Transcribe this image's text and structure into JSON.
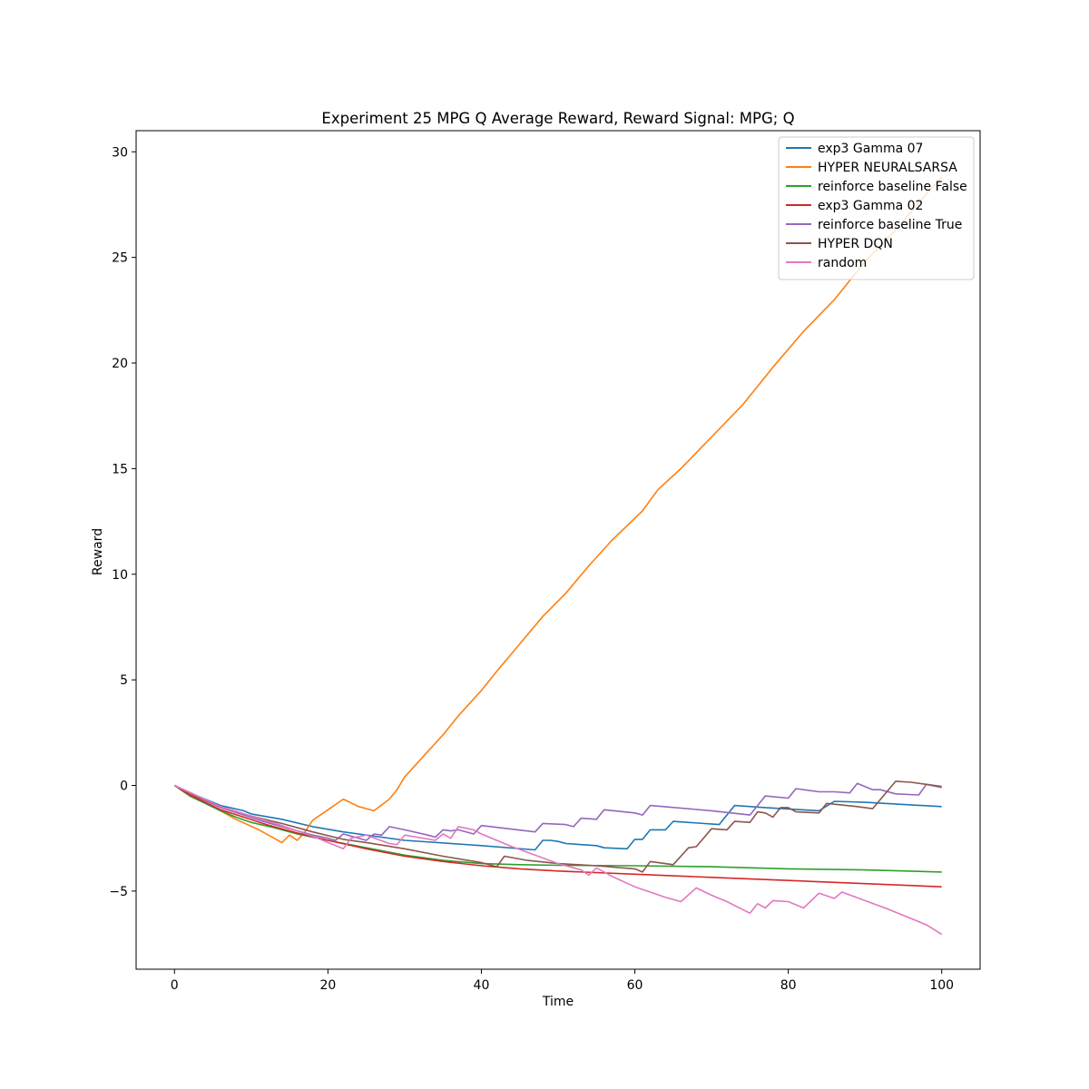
{
  "chart_data": {
    "type": "line",
    "title": "Experiment 25 MPG Q Average Reward,  Reward Signal: MPG; Q",
    "xlabel": "Time",
    "ylabel": "Reward",
    "xlim": [
      -5,
      105
    ],
    "ylim": [
      -8.7,
      31
    ],
    "xticks": [
      0,
      20,
      40,
      60,
      80,
      100
    ],
    "yticks": [
      -5,
      0,
      5,
      10,
      15,
      20,
      25,
      30
    ],
    "grid": false,
    "legend_position": "top-right",
    "series": [
      {
        "name": "exp3 Gamma 07",
        "color": "#1f77b4",
        "points": [
          [
            0,
            0
          ],
          [
            3,
            -0.5
          ],
          [
            6,
            -0.95
          ],
          [
            9,
            -1.2
          ],
          [
            10,
            -1.35
          ],
          [
            14,
            -1.6
          ],
          [
            18,
            -1.95
          ],
          [
            22,
            -2.2
          ],
          [
            30,
            -2.6
          ],
          [
            40,
            -2.85
          ],
          [
            47,
            -3.05
          ],
          [
            48,
            -2.6
          ],
          [
            49,
            -2.6
          ],
          [
            50,
            -2.65
          ],
          [
            51,
            -2.75
          ],
          [
            55,
            -2.85
          ],
          [
            56,
            -2.95
          ],
          [
            59,
            -3.0
          ],
          [
            60,
            -2.55
          ],
          [
            61,
            -2.55
          ],
          [
            62,
            -2.1
          ],
          [
            64,
            -2.1
          ],
          [
            65,
            -1.7
          ],
          [
            71,
            -1.85
          ],
          [
            73,
            -0.95
          ],
          [
            77,
            -1.05
          ],
          [
            84,
            -1.2
          ],
          [
            86,
            -0.75
          ],
          [
            90,
            -0.8
          ],
          [
            100,
            -1.0
          ]
        ]
      },
      {
        "name": "HYPER NEURALSARSA",
        "color": "#ff7f0e",
        "points": [
          [
            0,
            0
          ],
          [
            2,
            -0.5
          ],
          [
            5,
            -1.0
          ],
          [
            8,
            -1.6
          ],
          [
            11,
            -2.1
          ],
          [
            14,
            -2.7
          ],
          [
            15,
            -2.35
          ],
          [
            16,
            -2.6
          ],
          [
            17,
            -2.2
          ],
          [
            18,
            -1.65
          ],
          [
            20,
            -1.15
          ],
          [
            22,
            -0.65
          ],
          [
            24,
            -1.0
          ],
          [
            26,
            -1.2
          ],
          [
            28,
            -0.65
          ],
          [
            29,
            -0.2
          ],
          [
            30,
            0.4
          ],
          [
            32,
            1.2
          ],
          [
            34,
            2.0
          ],
          [
            35,
            2.4
          ],
          [
            37,
            3.3
          ],
          [
            40,
            4.5
          ],
          [
            42,
            5.4
          ],
          [
            45,
            6.7
          ],
          [
            48,
            8.0
          ],
          [
            51,
            9.1
          ],
          [
            54,
            10.4
          ],
          [
            57,
            11.6
          ],
          [
            61,
            13.0
          ],
          [
            63,
            14.0
          ],
          [
            66,
            15.0
          ],
          [
            70,
            16.5
          ],
          [
            74,
            18.0
          ],
          [
            78,
            19.8
          ],
          [
            82,
            21.5
          ],
          [
            86,
            23.0
          ],
          [
            90,
            24.8
          ],
          [
            94,
            26.3
          ],
          [
            97,
            27.6
          ],
          [
            100,
            28.8
          ]
        ]
      },
      {
        "name": "reinforce baseline False",
        "color": "#2ca02c",
        "points": [
          [
            0,
            0
          ],
          [
            2,
            -0.5
          ],
          [
            4,
            -0.85
          ],
          [
            6,
            -1.2
          ],
          [
            8,
            -1.5
          ],
          [
            10,
            -1.75
          ],
          [
            13,
            -2.0
          ],
          [
            16,
            -2.3
          ],
          [
            20,
            -2.6
          ],
          [
            25,
            -2.95
          ],
          [
            30,
            -3.3
          ],
          [
            35,
            -3.55
          ],
          [
            40,
            -3.7
          ],
          [
            45,
            -3.75
          ],
          [
            50,
            -3.78
          ],
          [
            60,
            -3.8
          ],
          [
            70,
            -3.85
          ],
          [
            80,
            -3.95
          ],
          [
            90,
            -4.0
          ],
          [
            100,
            -4.1
          ]
        ]
      },
      {
        "name": "exp3 Gamma 02",
        "color": "#d62728",
        "points": [
          [
            0,
            0
          ],
          [
            2,
            -0.45
          ],
          [
            4,
            -0.8
          ],
          [
            6,
            -1.15
          ],
          [
            9,
            -1.5
          ],
          [
            12,
            -1.85
          ],
          [
            16,
            -2.25
          ],
          [
            20,
            -2.6
          ],
          [
            25,
            -3.0
          ],
          [
            30,
            -3.35
          ],
          [
            35,
            -3.6
          ],
          [
            40,
            -3.8
          ],
          [
            45,
            -3.95
          ],
          [
            50,
            -4.05
          ],
          [
            60,
            -4.2
          ],
          [
            70,
            -4.35
          ],
          [
            80,
            -4.5
          ],
          [
            90,
            -4.65
          ],
          [
            100,
            -4.8
          ]
        ]
      },
      {
        "name": "reinforce baseline True",
        "color": "#9467bd",
        "points": [
          [
            0,
            0
          ],
          [
            3,
            -0.55
          ],
          [
            6,
            -1.05
          ],
          [
            9,
            -1.4
          ],
          [
            12,
            -1.75
          ],
          [
            15,
            -2.05
          ],
          [
            18,
            -2.35
          ],
          [
            20,
            -2.5
          ],
          [
            21,
            -2.6
          ],
          [
            22,
            -2.3
          ],
          [
            25,
            -2.6
          ],
          [
            26,
            -2.3
          ],
          [
            27,
            -2.35
          ],
          [
            28,
            -1.95
          ],
          [
            30,
            -2.1
          ],
          [
            33,
            -2.35
          ],
          [
            34,
            -2.45
          ],
          [
            35,
            -2.1
          ],
          [
            36,
            -2.15
          ],
          [
            37,
            -2.1
          ],
          [
            39,
            -2.3
          ],
          [
            40,
            -1.9
          ],
          [
            47,
            -2.2
          ],
          [
            48,
            -1.8
          ],
          [
            51,
            -1.85
          ],
          [
            52,
            -1.95
          ],
          [
            53,
            -1.55
          ],
          [
            55,
            -1.6
          ],
          [
            56,
            -1.15
          ],
          [
            60,
            -1.3
          ],
          [
            61,
            -1.4
          ],
          [
            62,
            -0.95
          ],
          [
            70,
            -1.2
          ],
          [
            75,
            -1.4
          ],
          [
            77,
            -0.5
          ],
          [
            80,
            -0.6
          ],
          [
            81,
            -0.15
          ],
          [
            84,
            -0.3
          ],
          [
            86,
            -0.3
          ],
          [
            88,
            -0.35
          ],
          [
            89,
            0.1
          ],
          [
            91,
            -0.2
          ],
          [
            92,
            -0.2
          ],
          [
            94,
            -0.4
          ],
          [
            97,
            -0.45
          ],
          [
            98,
            0.05
          ],
          [
            100,
            -0.1
          ]
        ]
      },
      {
        "name": "HYPER DQN",
        "color": "#8c564b",
        "points": [
          [
            0,
            0
          ],
          [
            3,
            -0.55
          ],
          [
            6,
            -1.0
          ],
          [
            10,
            -1.45
          ],
          [
            14,
            -1.8
          ],
          [
            18,
            -2.2
          ],
          [
            22,
            -2.55
          ],
          [
            25,
            -2.7
          ],
          [
            30,
            -3.0
          ],
          [
            35,
            -3.35
          ],
          [
            40,
            -3.65
          ],
          [
            42,
            -3.85
          ],
          [
            43,
            -3.35
          ],
          [
            46,
            -3.55
          ],
          [
            50,
            -3.7
          ],
          [
            55,
            -3.8
          ],
          [
            60,
            -3.95
          ],
          [
            61,
            -4.1
          ],
          [
            62,
            -3.6
          ],
          [
            65,
            -3.75
          ],
          [
            67,
            -2.95
          ],
          [
            68,
            -2.9
          ],
          [
            70,
            -2.05
          ],
          [
            72,
            -2.1
          ],
          [
            73,
            -1.7
          ],
          [
            75,
            -1.75
          ],
          [
            76,
            -1.25
          ],
          [
            77,
            -1.3
          ],
          [
            78,
            -1.5
          ],
          [
            79,
            -1.05
          ],
          [
            80,
            -1.05
          ],
          [
            81,
            -1.25
          ],
          [
            84,
            -1.3
          ],
          [
            85,
            -0.85
          ],
          [
            89,
            -1.0
          ],
          [
            91,
            -1.1
          ],
          [
            94,
            0.2
          ],
          [
            96,
            0.15
          ],
          [
            98,
            0.05
          ],
          [
            100,
            -0.05
          ]
        ]
      },
      {
        "name": "random",
        "color": "#e377c2",
        "points": [
          [
            0,
            0
          ],
          [
            3,
            -0.5
          ],
          [
            6,
            -1.0
          ],
          [
            10,
            -1.45
          ],
          [
            14,
            -1.9
          ],
          [
            18,
            -2.4
          ],
          [
            20,
            -2.7
          ],
          [
            22,
            -3.0
          ],
          [
            23,
            -2.5
          ],
          [
            25,
            -2.35
          ],
          [
            28,
            -2.75
          ],
          [
            29,
            -2.8
          ],
          [
            30,
            -2.35
          ],
          [
            34,
            -2.6
          ],
          [
            35,
            -2.3
          ],
          [
            36,
            -2.5
          ],
          [
            37,
            -1.95
          ],
          [
            39,
            -2.1
          ],
          [
            40,
            -2.3
          ],
          [
            42,
            -2.6
          ],
          [
            44,
            -2.9
          ],
          [
            47,
            -3.3
          ],
          [
            50,
            -3.7
          ],
          [
            53,
            -4.0
          ],
          [
            54,
            -4.25
          ],
          [
            55,
            -3.9
          ],
          [
            57,
            -4.3
          ],
          [
            60,
            -4.8
          ],
          [
            62,
            -5.05
          ],
          [
            64,
            -5.3
          ],
          [
            66,
            -5.5
          ],
          [
            68,
            -4.85
          ],
          [
            70,
            -5.2
          ],
          [
            72,
            -5.5
          ],
          [
            75,
            -6.05
          ],
          [
            76,
            -5.6
          ],
          [
            77,
            -5.8
          ],
          [
            78,
            -5.45
          ],
          [
            80,
            -5.5
          ],
          [
            82,
            -5.8
          ],
          [
            84,
            -5.1
          ],
          [
            86,
            -5.35
          ],
          [
            87,
            -5.05
          ],
          [
            90,
            -5.45
          ],
          [
            93,
            -5.85
          ],
          [
            96,
            -6.3
          ],
          [
            98,
            -6.6
          ],
          [
            100,
            -7.05
          ]
        ]
      }
    ]
  }
}
